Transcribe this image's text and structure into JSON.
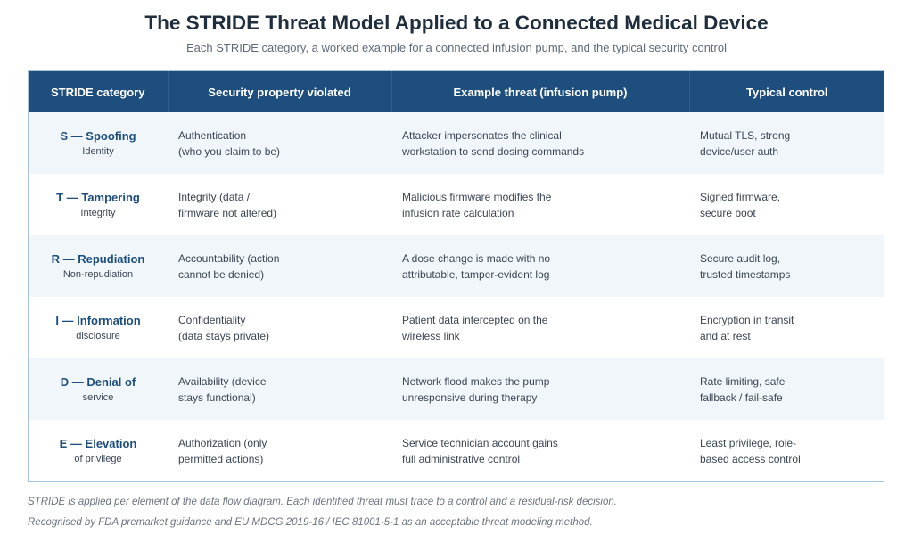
{
  "title": "The STRIDE Threat Model Applied to a Connected Medical Device",
  "subtitle": "Each STRIDE category, a worked example for a connected infusion pump, and the typical security control",
  "table": {
    "headers": [
      "STRIDE category",
      "Security property violated",
      "Example threat (infusion pump)",
      "Typical control"
    ],
    "rows": [
      {
        "category": "S — Spoofing",
        "category_sub": "Identity",
        "property": [
          "Authentication",
          "(who you claim to be)"
        ],
        "threat": [
          "Attacker impersonates the clinical",
          "workstation to send dosing commands"
        ],
        "control": [
          "Mutual TLS, strong",
          "device/user auth"
        ]
      },
      {
        "category": "T — Tampering",
        "category_sub": "Integrity",
        "property": [
          "Integrity (data /",
          "firmware not altered)"
        ],
        "threat": [
          "Malicious firmware modifies the",
          "infusion rate calculation"
        ],
        "control": [
          "Signed firmware,",
          "secure boot"
        ]
      },
      {
        "category": "R — Repudiation",
        "category_sub": "Non-repudiation",
        "property": [
          "Accountability (action",
          "cannot be denied)"
        ],
        "threat": [
          "A dose change is made with no",
          "attributable, tamper-evident log"
        ],
        "control": [
          "Secure audit log,",
          "trusted timestamps"
        ]
      },
      {
        "category": "I — Information",
        "category_sub": "disclosure",
        "property": [
          "Confidentiality",
          "(data stays private)"
        ],
        "threat": [
          "Patient data intercepted on the",
          "wireless link"
        ],
        "control": [
          "Encryption in transit",
          "and at rest"
        ]
      },
      {
        "category": "D — Denial of",
        "category_sub": "service",
        "property": [
          "Availability (device",
          "stays functional)"
        ],
        "threat": [
          "Network flood makes the pump",
          "unresponsive during therapy"
        ],
        "control": [
          "Rate limiting, safe",
          "fallback / fail-safe"
        ]
      },
      {
        "category": "E — Elevation",
        "category_sub": "of privilege",
        "property": [
          "Authorization (only",
          "permitted actions)"
        ],
        "threat": [
          "Service technician account gains",
          "full administrative control"
        ],
        "control": [
          "Least privilege, role-",
          "based access control"
        ]
      }
    ]
  },
  "footnotes": [
    "STRIDE is applied per element of the data flow diagram. Each identified threat must trace to a control and a residual-risk decision.",
    "Recognised by FDA premarket guidance and EU MDCG 2019-16 / IEC 81001-5-1 as an acceptable threat modeling method."
  ]
}
